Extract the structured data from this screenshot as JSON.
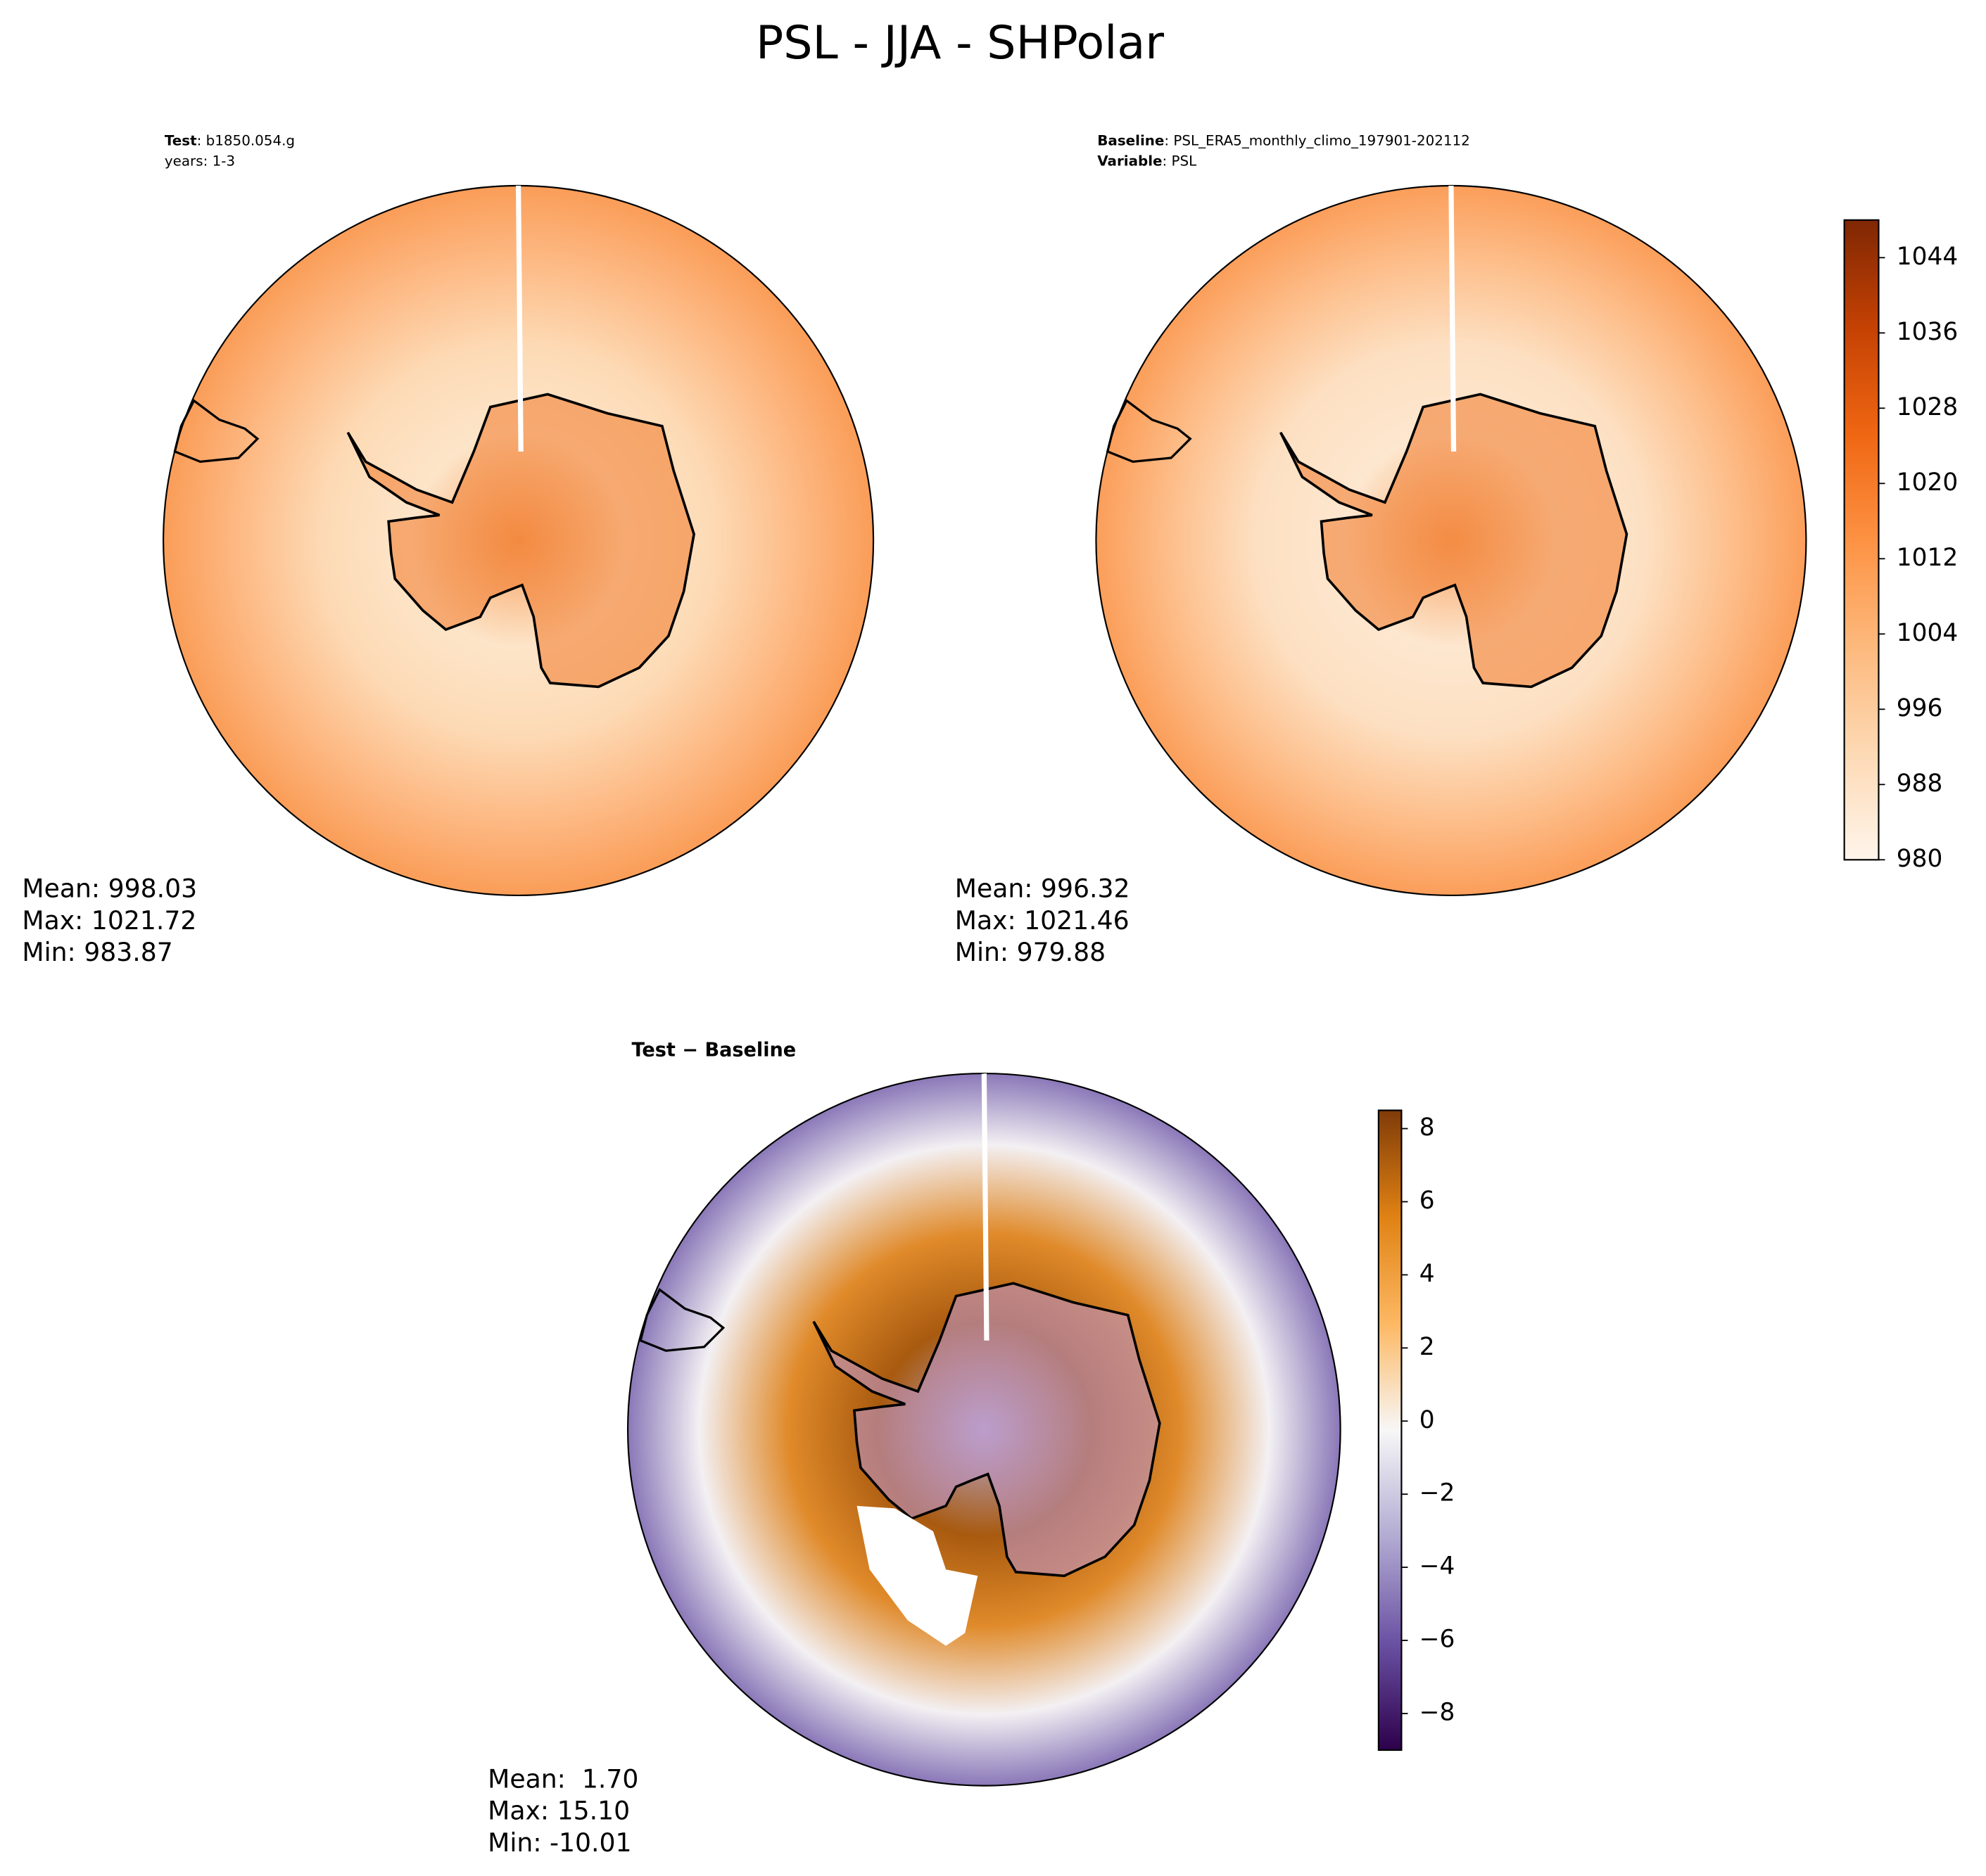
{
  "title": "PSL - JJA - SHPolar",
  "chart_data": [
    {
      "type": "map",
      "subtitle": [
        {
          "bold": "Test",
          "rest": ": b1850.054.g"
        },
        {
          "rest": "years: 1-3"
        }
      ],
      "stats": [
        "Mean: 998.03",
        "Max: 1021.72",
        "Min: 983.87"
      ]
    },
    {
      "type": "map",
      "subtitle": [
        {
          "bold": "Baseline",
          "rest": ": PSL_ERA5_monthly_climo_197901-202112"
        },
        {
          "bold": "Variable",
          "rest": ": PSL"
        }
      ],
      "stats": [
        "Mean: 996.32",
        "Max: 1021.46",
        "Min: 979.88"
      ],
      "colorbar": {
        "clim": [
          980,
          1048
        ],
        "ticks": [
          980,
          988,
          996,
          1004,
          1012,
          1020,
          1028,
          1036,
          1044
        ],
        "colors": [
          "#fff5eb",
          "#fdd9b4",
          "#fdb97d",
          "#fd9243",
          "#ef6612",
          "#c44103",
          "#7f2704"
        ]
      }
    },
    {
      "type": "map",
      "subtitle": [
        {
          "bold": "Test − Baseline"
        }
      ],
      "stats": [
        "Mean:  1.70",
        "Max: 15.10",
        "Min: -10.01"
      ],
      "colorbar": {
        "clim": [
          -9,
          8.5
        ],
        "ticks": [
          {
            "value": -8,
            "label": "−8"
          },
          {
            "value": -6,
            "label": "−6"
          },
          {
            "value": -4,
            "label": "−4"
          },
          {
            "value": -2,
            "label": "−2"
          },
          0,
          2,
          4,
          6,
          8
        ],
        "colors": [
          "#2d004b",
          "#6a51a3",
          "#b2abd2",
          "#f7f7f7",
          "#fdb863",
          "#e08214",
          "#7f3b08"
        ]
      }
    }
  ]
}
